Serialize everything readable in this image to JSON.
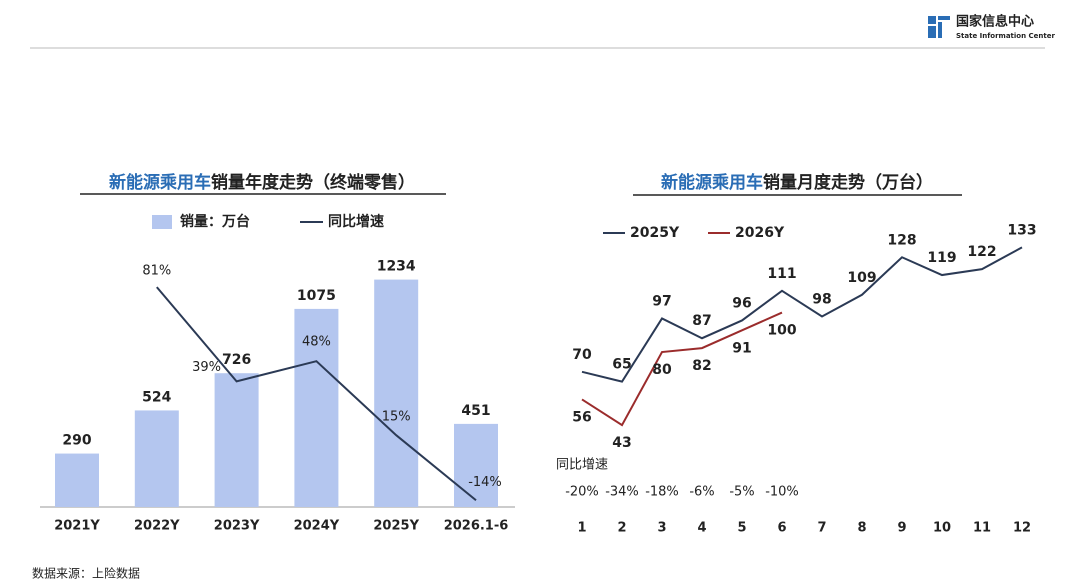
{
  "header": {
    "org_name": "国家信息中心",
    "org_name_en": "State Information Center"
  },
  "source": "数据来源：上险数据",
  "chart_data": [
    {
      "type": "bar_line",
      "title": "新能源乘用车销量年度走势（终端零售）",
      "categories": [
        "2021Y",
        "2022Y",
        "2023Y",
        "2024Y",
        "2025Y",
        "2026.1-6"
      ],
      "ylim": [
        0,
        1400
      ],
      "y2lim": [
        -17,
        98
      ],
      "series": [
        {
          "name": "销量：万台",
          "color": "#b4c6ef",
          "values": [
            290,
            524,
            726,
            1075,
            1234,
            451
          ]
        },
        {
          "name": "同比增速",
          "color": "#2b3a55",
          "axis": "y2",
          "values": [
            null,
            81,
            39,
            48,
            15,
            -14
          ],
          "value_labels": [
            null,
            "81%",
            "39%",
            "48%",
            "15%",
            "-14%"
          ]
        }
      ]
    },
    {
      "type": "line",
      "title": "新能源乘用车销量月度走势（万台）",
      "categories": [
        "1",
        "2",
        "3",
        "4",
        "5",
        "6",
        "7",
        "8",
        "9",
        "10",
        "11",
        "12"
      ],
      "ylim": [
        0,
        157
      ],
      "series": [
        {
          "name": "2025Y",
          "color": "#2b3a55",
          "values": [
            70,
            65,
            97,
            87,
            96,
            111,
            98,
            109,
            128,
            119,
            122,
            133
          ]
        },
        {
          "name": "2026Y",
          "color": "#9b2c2c",
          "values": [
            56,
            43,
            80,
            82,
            91,
            100,
            null,
            null,
            null,
            null,
            null,
            null
          ]
        }
      ],
      "yoy": {
        "name": "同比增速",
        "values": [
          -20,
          -34,
          -18,
          -6,
          -5,
          -10
        ],
        "value_labels": [
          "-20%",
          "-34%",
          "-18%",
          "-6%",
          "-5%",
          "-10%"
        ]
      }
    }
  ]
}
